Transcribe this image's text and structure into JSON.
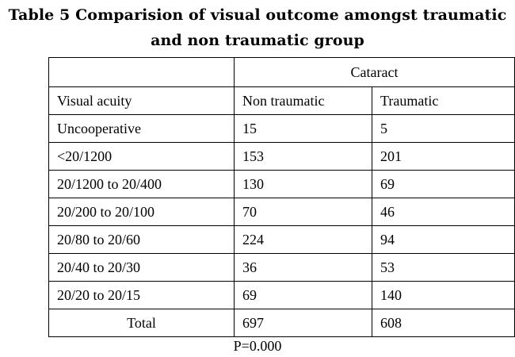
{
  "title_line1": "Table 5 Comparision of visual outcome amongst traumatic",
  "title_line2": "and non traumatic group",
  "table": {
    "group_header": "Cataract",
    "col_headers": [
      "Visual acuity",
      "Non traumatic",
      "Traumatic"
    ],
    "rows": [
      {
        "label": "Uncooperative",
        "non_traumatic": "15",
        "traumatic": "5"
      },
      {
        "label": "<20/1200",
        "non_traumatic": "153",
        "traumatic": "201"
      },
      {
        "label": "20/1200  to 20/400",
        "non_traumatic": "130",
        "traumatic": "69"
      },
      {
        "label": "20/200 to 20/100",
        "non_traumatic": "70",
        "traumatic": "46"
      },
      {
        "label": "20/80  to 20/60",
        "non_traumatic": "224",
        "traumatic": "94"
      },
      {
        "label": "20/40 to 20/30",
        "non_traumatic": "36",
        "traumatic": "53"
      },
      {
        "label": "20/20  to 20/15",
        "non_traumatic": "69",
        "traumatic": "140"
      }
    ],
    "total": {
      "label": "Total",
      "non_traumatic": "697",
      "traumatic": "608"
    }
  },
  "footnote": "P=0.000"
}
